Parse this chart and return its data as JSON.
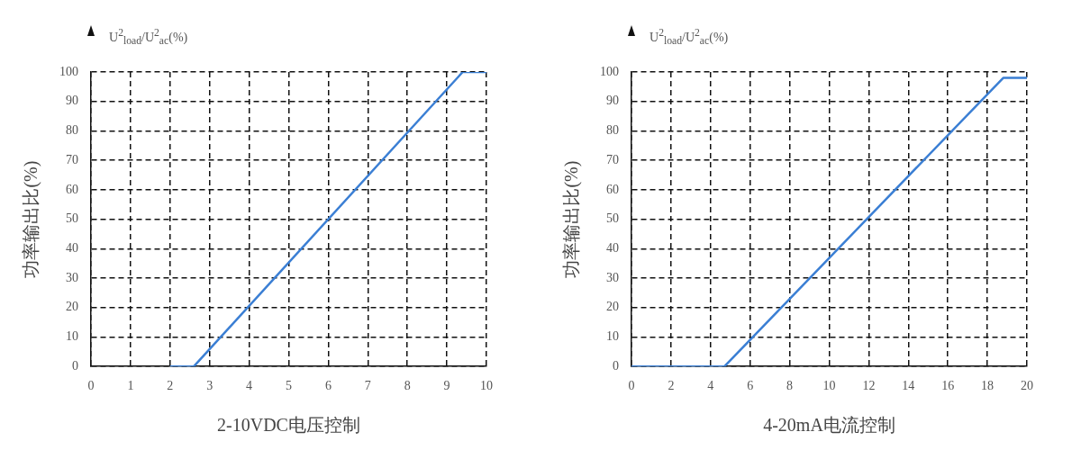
{
  "chart_data": [
    {
      "type": "line",
      "xlabel": "2-10VDC电压控制",
      "ylabel": "功率输出比(%)",
      "annotations": [
        "U$^{2}$$_{load}$/U$^{2}$$_{ac}$(%)"
      ],
      "series": [
        {
          "color": "#3b7fd4",
          "x": [
            2,
            2.6,
            9.4,
            10
          ],
          "values": [
            0,
            0,
            100,
            100
          ]
        }
      ],
      "xlim": [
        0,
        10
      ],
      "xticks": [
        0,
        1,
        2,
        3,
        4,
        5,
        6,
        7,
        8,
        9,
        10
      ],
      "ylim": [
        0,
        100
      ],
      "yticks": [
        0,
        10,
        20,
        30,
        40,
        50,
        60,
        70,
        80,
        90,
        100
      ],
      "grid": true,
      "legend": false,
      "marker": "none",
      "line_style": "solid"
    },
    {
      "type": "line",
      "xlabel": "4-20mA电流控制",
      "ylabel": "功率输出比(%)",
      "annotations": [
        "U$^{2}$$_{load}$/U$^{2}$$_{ac}$(%)"
      ],
      "series": [
        {
          "color": "#3b7fd4",
          "x": [
            0,
            4.7,
            18.8,
            20
          ],
          "values": [
            0,
            0,
            98,
            98
          ]
        }
      ],
      "xlim": [
        0,
        20
      ],
      "xticks": [
        0,
        2,
        4,
        6,
        8,
        10,
        12,
        14,
        16,
        18,
        20
      ],
      "ylim": [
        0,
        100
      ],
      "yticks": [
        0,
        10,
        20,
        30,
        40,
        50,
        60,
        70,
        80,
        90,
        100
      ],
      "grid": true,
      "legend": false,
      "marker": "none",
      "line_style": "solid"
    }
  ]
}
